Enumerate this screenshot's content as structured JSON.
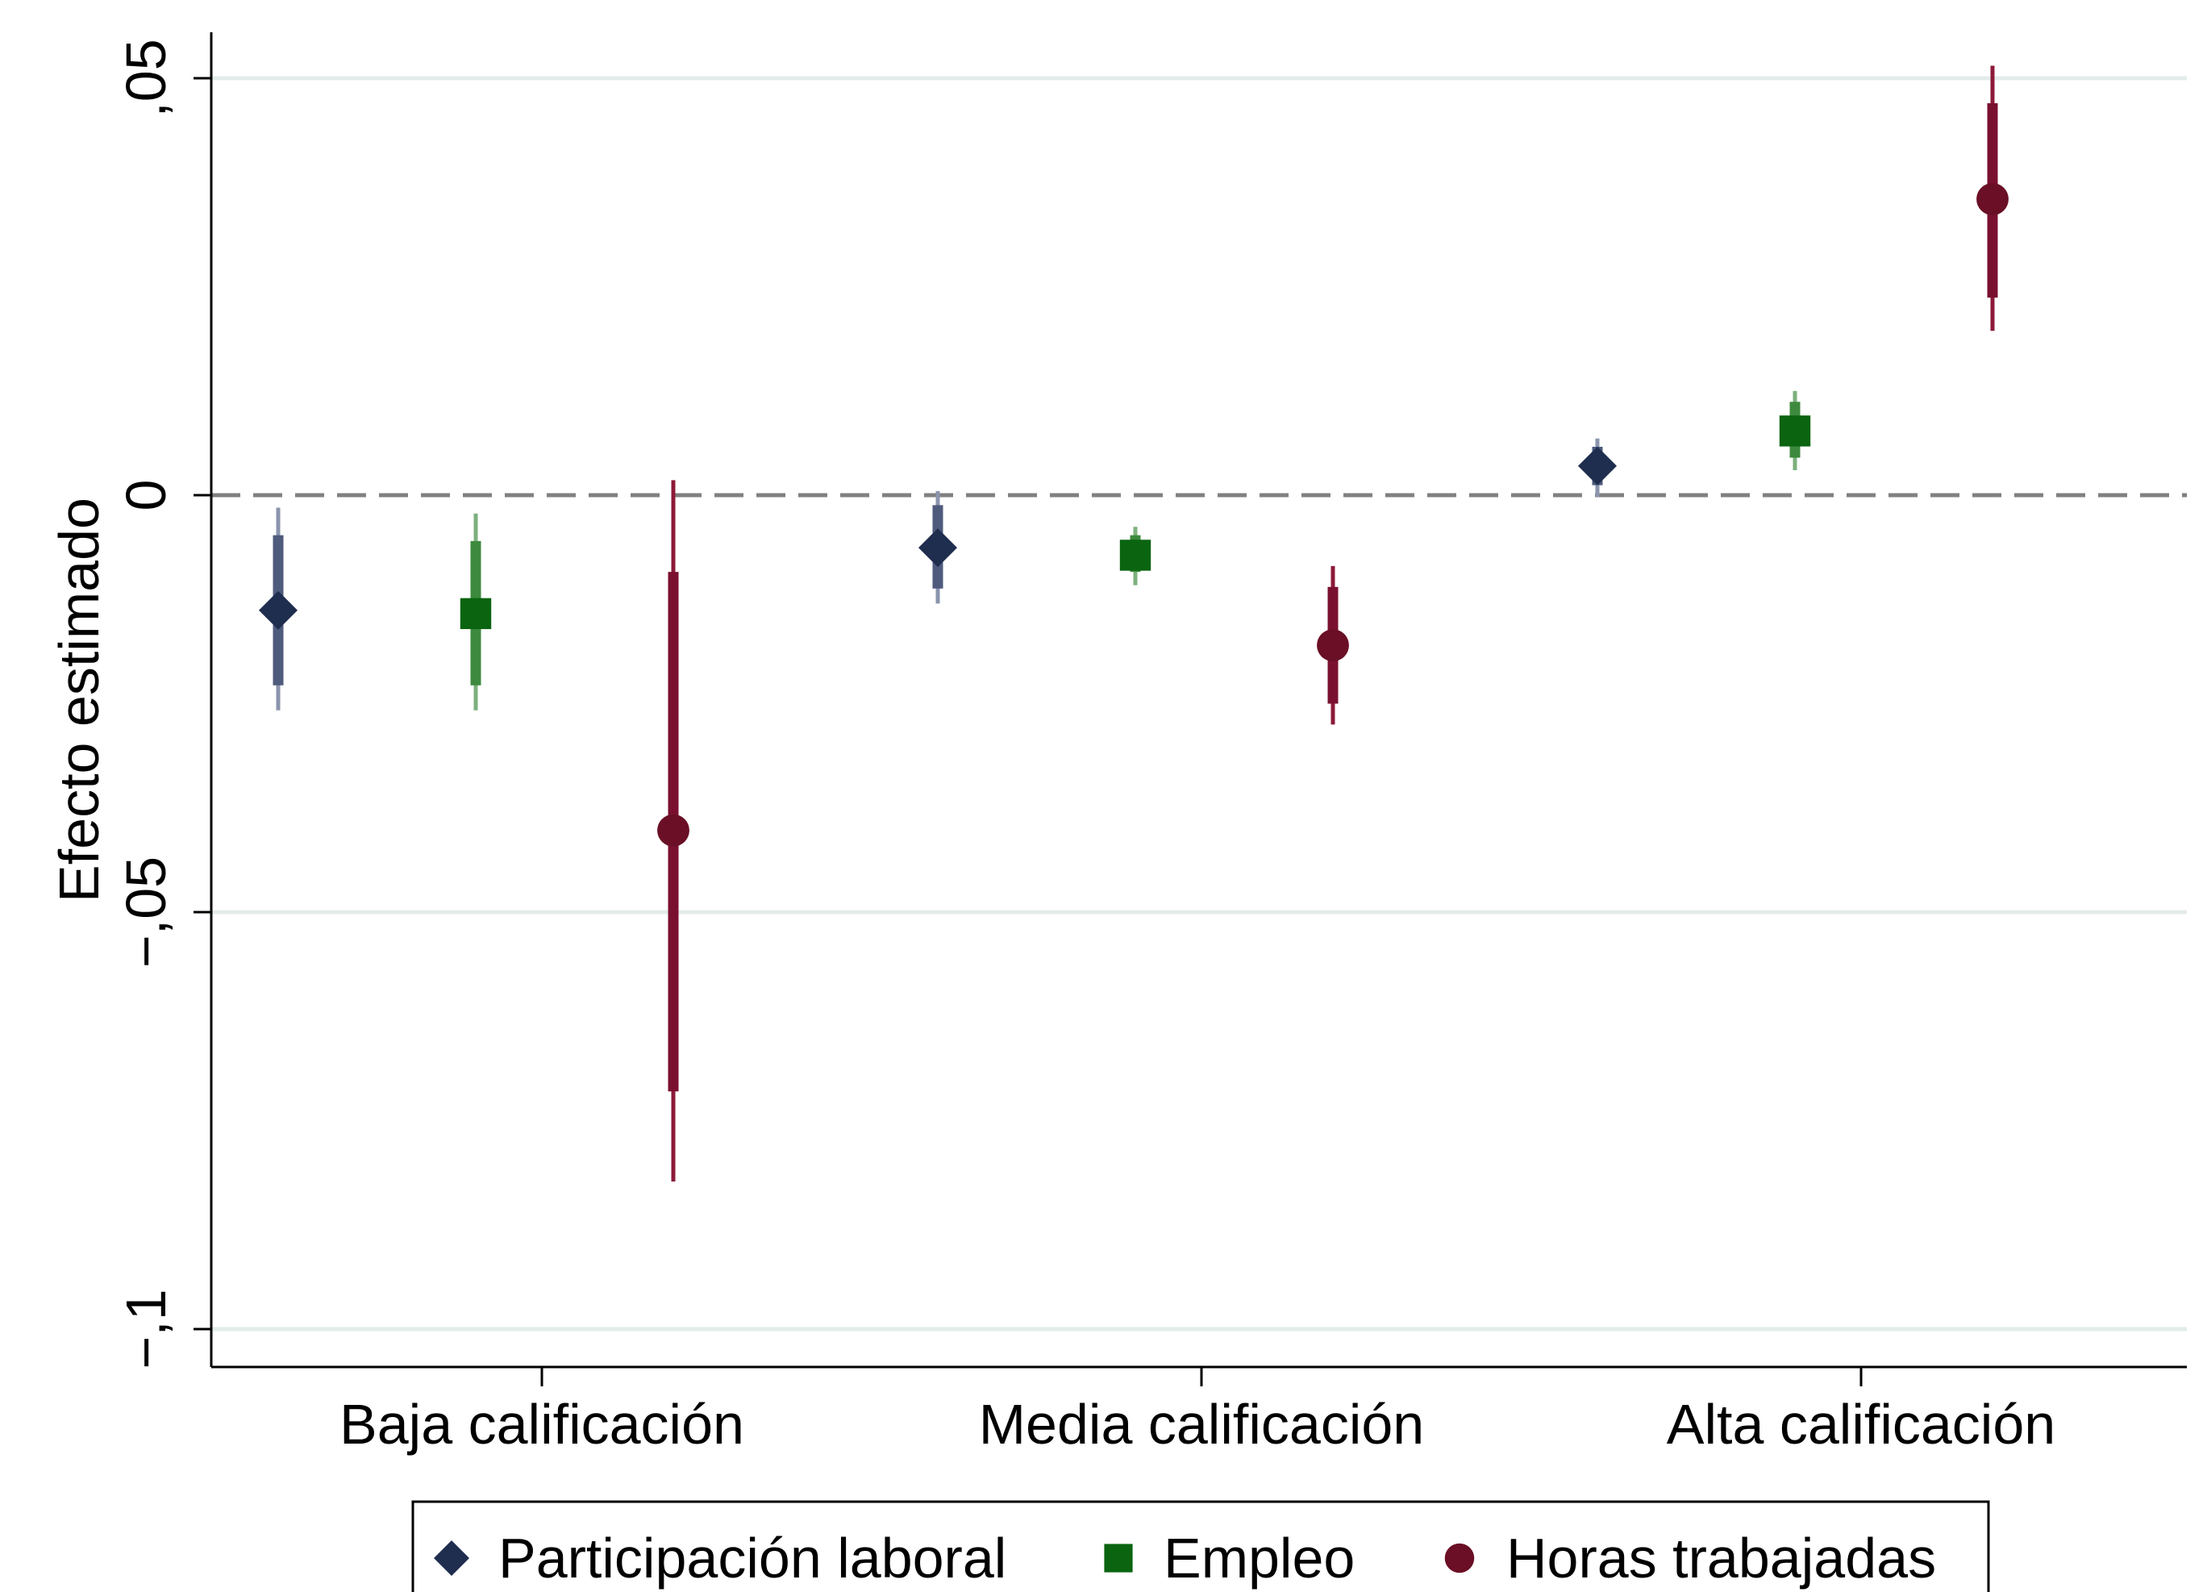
{
  "chart_data": {
    "type": "scatter",
    "subtype": "coefficient plot with confidence intervals",
    "ylabel": "Efecto estimado",
    "xlabel": "",
    "ylim": [
      -0.104,
      0.055
    ],
    "yticks": [
      {
        "value": 0.05,
        "label": ",05"
      },
      {
        "value": 0,
        "label": "0"
      },
      {
        "value": -0.05,
        "label": "-,05"
      },
      {
        "value": -0.1,
        "label": "-,1"
      }
    ],
    "grid": true,
    "reference_line": {
      "value": 0,
      "style": "dashed"
    },
    "categories": [
      "Baja calificación",
      "Media calificación",
      "Alta calificación"
    ],
    "legend_position": "bottom",
    "series": [
      {
        "name": "Participación laboral",
        "marker": "diamond-icon",
        "color": "#1f2d4e",
        "ci_color_inner": "#4e5b7d",
        "ci_color_outer": "#8a94ad",
        "points": [
          {
            "category": "Baja calificación",
            "estimate": -0.0138,
            "ci90": [
              -0.0228,
              -0.0048
            ],
            "ci95": [
              -0.0258,
              -0.0015
            ]
          },
          {
            "category": "Media calificación",
            "estimate": -0.0063,
            "ci90": [
              -0.0112,
              -0.0012
            ],
            "ci95": [
              -0.013,
              0.0005
            ]
          },
          {
            "category": "Alta calificación",
            "estimate": 0.0035,
            "ci90": [
              0.0012,
              0.0058
            ],
            "ci95": [
              -0.0002,
              0.0068
            ]
          }
        ]
      },
      {
        "name": "Empleo",
        "marker": "square-icon",
        "color": "#0a6410",
        "ci_color_inner": "#3d8a3e",
        "ci_color_outer": "#7cb07c",
        "points": [
          {
            "category": "Baja calificación",
            "estimate": -0.0142,
            "ci90": [
              -0.0228,
              -0.0055
            ],
            "ci95": [
              -0.0258,
              -0.0022
            ]
          },
          {
            "category": "Media calificación",
            "estimate": -0.0072,
            "ci90": [
              -0.0092,
              -0.0048
            ],
            "ci95": [
              -0.0108,
              -0.0038
            ]
          },
          {
            "category": "Alta calificación",
            "estimate": 0.0077,
            "ci90": [
              0.0045,
              0.0112
            ],
            "ci95": [
              0.003,
              0.0125
            ]
          }
        ]
      },
      {
        "name": "Horas trabajadas",
        "marker": "circle-icon",
        "color": "#6a0f25",
        "ci_color_inner": "#7a1030",
        "ci_color_outer": "#8c1a38",
        "points": [
          {
            "category": "Baja calificación",
            "estimate": -0.0402,
            "ci90": [
              -0.0715,
              -0.0092
            ],
            "ci95": [
              -0.0823,
              0.0018
            ]
          },
          {
            "category": "Media calificación",
            "estimate": -0.018,
            "ci90": [
              -0.025,
              -0.011
            ],
            "ci95": [
              -0.0275,
              -0.0085
            ]
          },
          {
            "category": "Alta calificación",
            "estimate": 0.0355,
            "ci90": [
              0.0237,
              0.047
            ],
            "ci95": [
              0.0197,
              0.0515
            ]
          }
        ]
      }
    ]
  }
}
